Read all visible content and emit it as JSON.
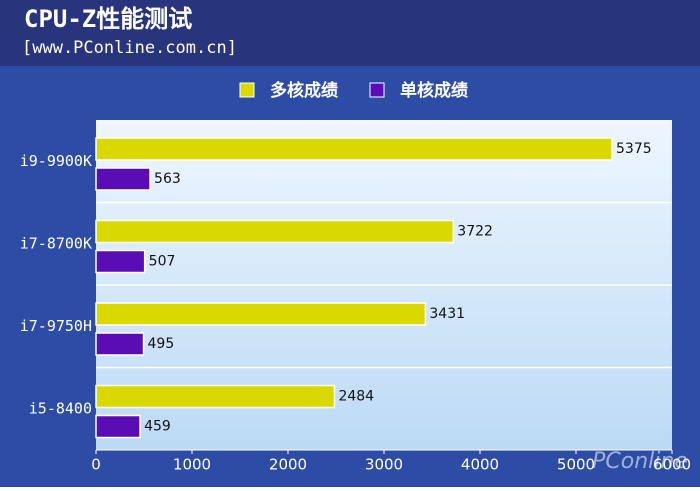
{
  "chart_data": {
    "type": "bar",
    "orientation": "horizontal",
    "title": "CPU-Z性能测试",
    "subtitle": "[www.PConline.com.cn]",
    "watermark": "PConline",
    "categories": [
      "i9-9900K",
      "i7-8700K",
      "i7-9750H",
      "i5-8400"
    ],
    "series": [
      {
        "name": "多核成绩",
        "color": "#d9d800",
        "values": [
          5375,
          3722,
          3431,
          2484
        ]
      },
      {
        "name": "单核成绩",
        "color": "#5b0db5",
        "values": [
          563,
          507,
          495,
          459
        ]
      }
    ],
    "xlim": [
      0,
      6000
    ],
    "xticks": [
      0,
      1000,
      2000,
      3000,
      4000,
      5000,
      6000
    ],
    "grid": false
  }
}
